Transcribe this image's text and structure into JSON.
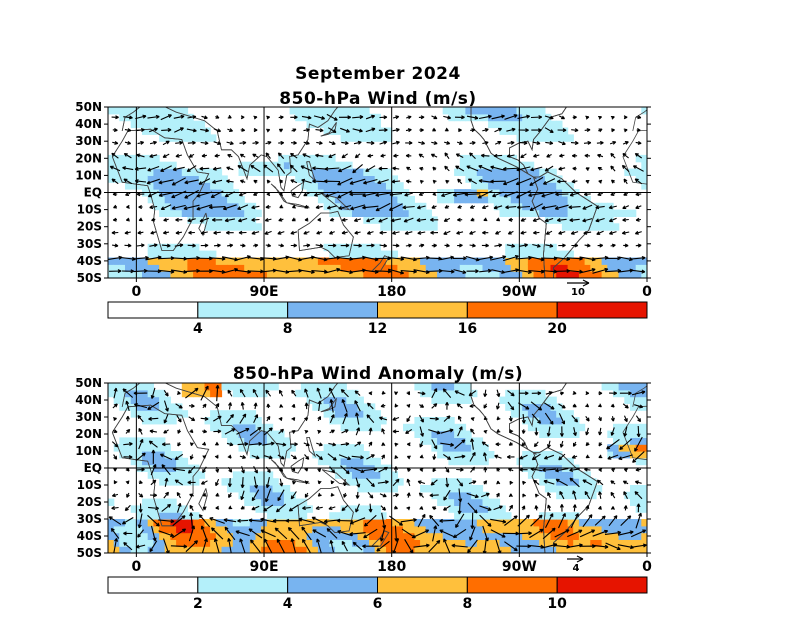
{
  "title": "September 2024",
  "palette": {
    "white": "#ffffff",
    "light_blue": "#b4f0fa",
    "blue": "#78b4f0",
    "light_orange": "#ffc03c",
    "orange": "#ff6e00",
    "red": "#e61400",
    "coast": "#444444",
    "vector": "#000000"
  },
  "chart_data": [
    {
      "type": "heatmap",
      "subtype": "vector-field",
      "title": "850-hPa Wind (m/s)",
      "x_ticks": [
        "0",
        "90E",
        "180",
        "90W",
        "0"
      ],
      "y_ticks": [
        "50N",
        "40N",
        "30N",
        "20N",
        "10N",
        "EQ",
        "10S",
        "20S",
        "30S",
        "40S",
        "50S"
      ],
      "xlim": [
        -20,
        360
      ],
      "ylim": [
        -50,
        50
      ],
      "grid": true,
      "reference_vector_label": "10",
      "colorbar": {
        "bounds": [
          0,
          4,
          8,
          12,
          16,
          20,
          24
        ],
        "labels": [
          "4",
          "8",
          "12",
          "16",
          "20"
        ],
        "colors": [
          "#ffffff",
          "#b4f0fa",
          "#78b4f0",
          "#ffc03c",
          "#ff6e00",
          "#e61400"
        ]
      }
    },
    {
      "type": "heatmap",
      "subtype": "vector-field",
      "title": "850-hPa Wind Anomaly (m/s)",
      "x_ticks": [
        "0",
        "90E",
        "180",
        "90W",
        "0"
      ],
      "y_ticks": [
        "50N",
        "40N",
        "30N",
        "20N",
        "10N",
        "EQ",
        "10S",
        "20S",
        "30S",
        "40S",
        "50S"
      ],
      "xlim": [
        -20,
        360
      ],
      "ylim": [
        -50,
        50
      ],
      "grid": true,
      "reference_vector_label": "4",
      "colorbar": {
        "bounds": [
          0,
          2,
          4,
          6,
          8,
          10,
          12
        ],
        "labels": [
          "2",
          "4",
          "6",
          "8",
          "10"
        ],
        "colors": [
          "#ffffff",
          "#b4f0fa",
          "#78b4f0",
          "#ffc03c",
          "#ff6e00",
          "#e61400"
        ]
      }
    }
  ]
}
